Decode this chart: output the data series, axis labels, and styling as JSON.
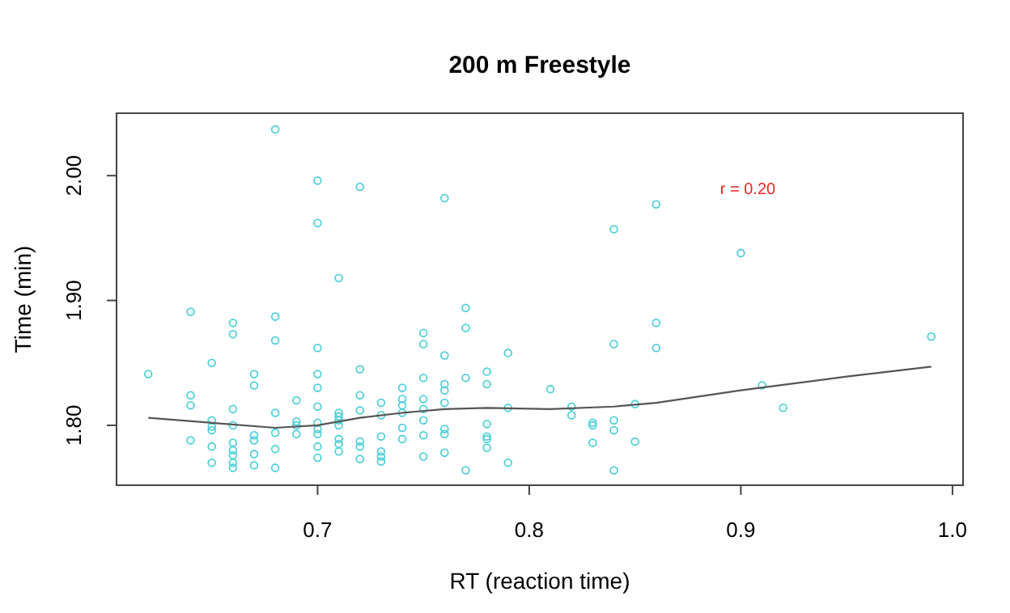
{
  "chart_data": {
    "type": "scatter",
    "title": "200 m Freestyle",
    "xlabel": "RT  (reaction time)",
    "ylabel": "Time (min)",
    "xlim": [
      0.605,
      1.005
    ],
    "ylim": [
      1.752,
      2.05
    ],
    "xticks": [
      0.7,
      0.8,
      0.9,
      {
        "value": 1,
        "label": "1.0"
      }
    ],
    "yticks": [
      {
        "value": 1.8,
        "label": "1.80"
      },
      {
        "value": 1.9,
        "label": "1.90"
      },
      {
        "value": 2,
        "label": "2.00"
      }
    ],
    "annotations": [
      "r = 0.20"
    ],
    "series": [
      {
        "color": "#4fd0d8",
        "marker": "circle",
        "x": [
          0.62,
          0.64,
          0.64,
          0.64,
          0.64,
          0.65,
          0.65,
          0.65,
          0.65,
          0.65,
          0.65,
          0.66,
          0.66,
          0.66,
          0.66,
          0.66,
          0.66,
          0.66,
          0.66,
          0.66,
          0.67,
          0.67,
          0.67,
          0.67,
          0.67,
          0.67,
          0.68,
          0.68,
          0.68,
          0.68,
          0.68,
          0.68,
          0.68,
          0.69,
          0.69,
          0.69,
          0.69,
          0.7,
          0.7,
          0.7,
          0.7,
          0.7,
          0.7,
          0.7,
          0.7,
          0.7,
          0.7,
          0.7,
          0.71,
          0.71,
          0.71,
          0.71,
          0.71,
          0.71,
          0.71,
          0.71,
          0.72,
          0.72,
          0.72,
          0.72,
          0.72,
          0.72,
          0.72,
          0.73,
          0.73,
          0.73,
          0.73,
          0.73,
          0.73,
          0.74,
          0.74,
          0.74,
          0.74,
          0.74,
          0.74,
          0.75,
          0.75,
          0.75,
          0.75,
          0.75,
          0.75,
          0.75,
          0.75,
          0.76,
          0.76,
          0.76,
          0.76,
          0.76,
          0.76,
          0.76,
          0.76,
          0.77,
          0.77,
          0.77,
          0.77,
          0.78,
          0.78,
          0.78,
          0.78,
          0.78,
          0.78,
          0.79,
          0.79,
          0.79,
          0.81,
          0.82,
          0.82,
          0.83,
          0.83,
          0.83,
          0.84,
          0.84,
          0.84,
          0.84,
          0.84,
          0.85,
          0.85,
          0.86,
          0.86,
          0.86,
          0.9,
          0.91,
          0.92,
          0.99
        ],
        "values": [
          1.841,
          1.891,
          1.824,
          1.816,
          1.788,
          1.85,
          1.804,
          1.799,
          1.796,
          1.783,
          1.77,
          1.882,
          1.873,
          1.813,
          1.8,
          1.786,
          1.78,
          1.776,
          1.77,
          1.766,
          1.841,
          1.832,
          1.792,
          1.788,
          1.777,
          1.768,
          2.037,
          1.887,
          1.868,
          1.81,
          1.794,
          1.781,
          1.766,
          1.82,
          1.803,
          1.8,
          1.793,
          1.996,
          1.962,
          1.862,
          1.841,
          1.83,
          1.815,
          1.802,
          1.797,
          1.793,
          1.783,
          1.774,
          1.918,
          1.81,
          1.807,
          1.804,
          1.8,
          1.789,
          1.785,
          1.779,
          1.991,
          1.845,
          1.824,
          1.812,
          1.787,
          1.783,
          1.773,
          1.818,
          1.808,
          1.791,
          1.779,
          1.775,
          1.771,
          1.83,
          1.821,
          1.816,
          1.81,
          1.798,
          1.789,
          1.874,
          1.865,
          1.838,
          1.821,
          1.813,
          1.804,
          1.792,
          1.775,
          1.982,
          1.856,
          1.833,
          1.828,
          1.818,
          1.797,
          1.793,
          1.778,
          1.894,
          1.878,
          1.838,
          1.764,
          1.843,
          1.833,
          1.801,
          1.791,
          1.789,
          1.782,
          1.858,
          1.814,
          1.77,
          1.829,
          1.815,
          1.808,
          1.802,
          1.8,
          1.786,
          1.957,
          1.865,
          1.804,
          1.796,
          1.764,
          1.817,
          1.787,
          1.977,
          1.882,
          1.862,
          1.938,
          1.832,
          1.814,
          1.871
        ]
      },
      {
        "type": "line",
        "color": "#555555",
        "marker": "none",
        "line_style": "solid",
        "x": [
          0.62,
          0.65,
          0.68,
          0.7,
          0.72,
          0.74,
          0.76,
          0.78,
          0.81,
          0.84,
          0.86,
          0.9,
          0.95,
          0.99
        ],
        "values": [
          1.806,
          1.802,
          1.798,
          1.8,
          1.806,
          1.81,
          1.813,
          1.814,
          1.813,
          1.815,
          1.818,
          1.828,
          1.839,
          1.847
        ]
      }
    ]
  }
}
